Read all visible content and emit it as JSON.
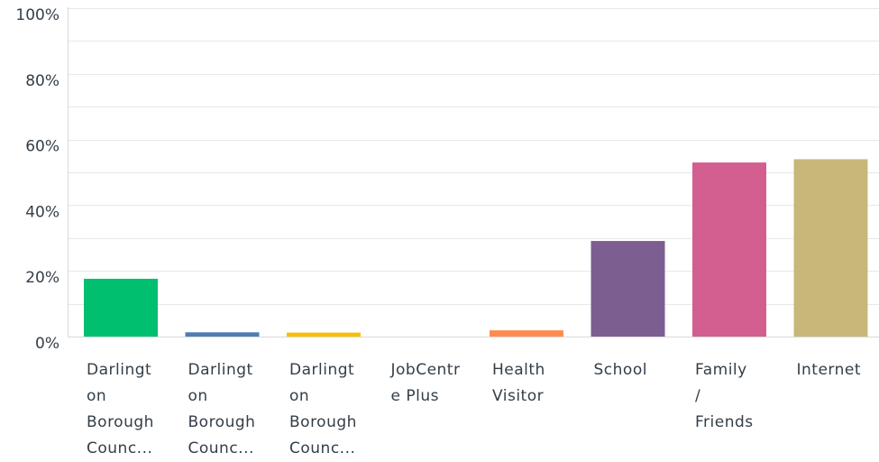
{
  "chart_data": {
    "type": "bar",
    "title": "",
    "xlabel": "",
    "ylabel": "",
    "ylim": [
      0,
      100
    ],
    "y_ticks": [
      "0%",
      "20%",
      "40%",
      "60%",
      "80%",
      "100%"
    ],
    "grid": true,
    "legend": "none",
    "categories": [
      "Darlington Borough Counc...",
      "Darlington Borough Counc...",
      "Darlington Borough Counc...",
      "JobCentre Plus",
      "Health Visitor",
      "School",
      "Family / Friends",
      "Internet"
    ],
    "category_lines": [
      [
        "Darlingt",
        "on",
        "Borough",
        "Counc..."
      ],
      [
        "Darlingt",
        "on",
        "Borough",
        "Counc..."
      ],
      [
        "Darlingt",
        "on",
        "Borough",
        "Counc..."
      ],
      [
        "JobCentr",
        "e Plus"
      ],
      [
        "Health",
        "Visitor"
      ],
      [
        "School"
      ],
      [
        "Family",
        "/",
        "Friends"
      ],
      [
        "Internet"
      ]
    ],
    "values": [
      17.6,
      1.3,
      1.2,
      0,
      1.9,
      29.1,
      53.0,
      54.0
    ],
    "colors": [
      "#00bf6f",
      "#507cb6",
      "#f9be00",
      "#6bc8cd",
      "#ff8b4f",
      "#7d5e90",
      "#d25f90",
      "#c7b879"
    ]
  }
}
